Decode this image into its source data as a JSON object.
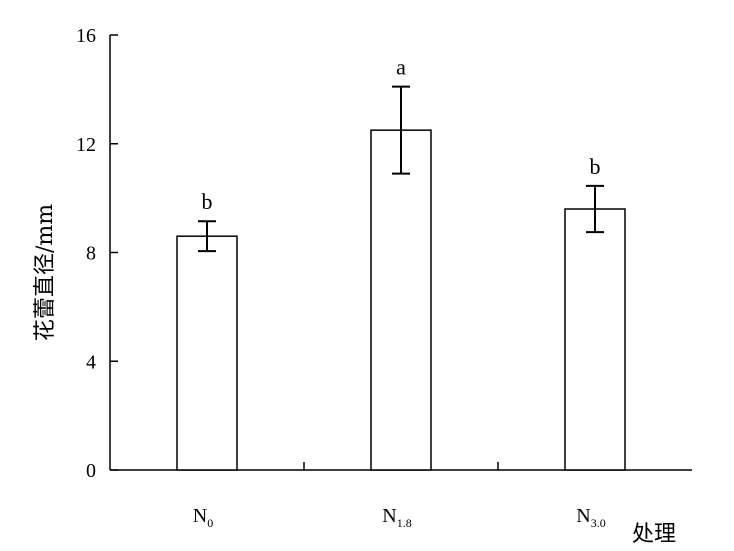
{
  "chart_data": {
    "type": "bar",
    "ylabel": "花蕾直径/mm",
    "xlabel": "处理",
    "ylim": [
      0,
      16
    ],
    "yticks": [
      0,
      4,
      8,
      12,
      16
    ],
    "grid": false,
    "categories": [
      {
        "base": "N",
        "sub": "0"
      },
      {
        "base": "N",
        "sub": "1.8"
      },
      {
        "base": "N",
        "sub": "3.0"
      }
    ],
    "values": [
      8.6,
      12.5,
      9.6
    ],
    "errors": [
      0.55,
      1.6,
      0.85
    ],
    "significance": [
      "b",
      "a",
      "b"
    ],
    "bar_color": "#ffffff",
    "stroke_color": "#000000"
  }
}
